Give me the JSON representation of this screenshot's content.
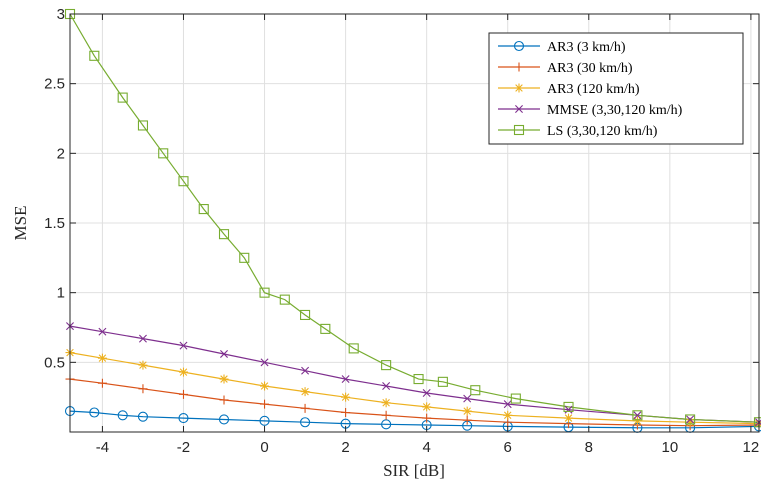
{
  "chart_data": {
    "type": "line",
    "xlabel": "SIR [dB]",
    "ylabel": "MSE",
    "xlim": [
      -4.8,
      12.2
    ],
    "ylim": [
      0,
      3
    ],
    "grid": true,
    "legend_position": "top-right",
    "x_ticks": [
      -4,
      -2,
      0,
      2,
      4,
      6,
      8,
      10,
      12
    ],
    "y_ticks": [
      0.5,
      1,
      1.5,
      2,
      2.5,
      3
    ],
    "x_tick_labels": [
      "-4",
      "-2",
      "0",
      "2",
      "4",
      "6",
      "8",
      "10",
      "12"
    ],
    "y_tick_labels": [
      "0.5",
      "1",
      "1.5",
      "2",
      "2.5",
      "3"
    ],
    "series": [
      {
        "name": "AR3 (3 km/h)",
        "color": "#0072BD",
        "marker": "circle",
        "points": [
          [
            -4.8,
            0.15
          ],
          [
            -4.2,
            0.14
          ],
          [
            -3.5,
            0.12
          ],
          [
            -3.0,
            0.11
          ],
          [
            -2.0,
            0.1
          ],
          [
            -1.0,
            0.09
          ],
          [
            0.0,
            0.08
          ],
          [
            1.0,
            0.07
          ],
          [
            2.0,
            0.06
          ],
          [
            3.0,
            0.055
          ],
          [
            4.0,
            0.05
          ],
          [
            5.0,
            0.045
          ],
          [
            6.0,
            0.04
          ],
          [
            7.5,
            0.035
          ],
          [
            9.2,
            0.03
          ],
          [
            10.5,
            0.03
          ],
          [
            12.2,
            0.04
          ]
        ]
      },
      {
        "name": "AR3 (30 km/h)",
        "color": "#D95319",
        "marker": "plus",
        "points": [
          [
            -4.8,
            0.38
          ],
          [
            -4.0,
            0.35
          ],
          [
            -3.0,
            0.31
          ],
          [
            -2.0,
            0.27
          ],
          [
            -1.0,
            0.23
          ],
          [
            0.0,
            0.2
          ],
          [
            1.0,
            0.17
          ],
          [
            2.0,
            0.14
          ],
          [
            3.0,
            0.12
          ],
          [
            4.0,
            0.1
          ],
          [
            5.0,
            0.085
          ],
          [
            6.0,
            0.07
          ],
          [
            7.5,
            0.06
          ],
          [
            9.2,
            0.05
          ],
          [
            10.5,
            0.045
          ],
          [
            12.2,
            0.05
          ]
        ]
      },
      {
        "name": "AR3 (120 km/h)",
        "color": "#EDB120",
        "marker": "asterisk",
        "points": [
          [
            -4.8,
            0.57
          ],
          [
            -4.0,
            0.53
          ],
          [
            -3.0,
            0.48
          ],
          [
            -2.0,
            0.43
          ],
          [
            -1.0,
            0.38
          ],
          [
            0.0,
            0.33
          ],
          [
            1.0,
            0.29
          ],
          [
            2.0,
            0.25
          ],
          [
            3.0,
            0.21
          ],
          [
            4.0,
            0.18
          ],
          [
            5.0,
            0.15
          ],
          [
            6.0,
            0.12
          ],
          [
            7.5,
            0.1
          ],
          [
            9.2,
            0.08
          ],
          [
            10.5,
            0.07
          ],
          [
            12.2,
            0.06
          ]
        ]
      },
      {
        "name": "MMSE (3,30,120 km/h)",
        "color": "#7E2F8E",
        "marker": "x",
        "points": [
          [
            -4.8,
            0.76
          ],
          [
            -4.0,
            0.72
          ],
          [
            -3.0,
            0.67
          ],
          [
            -2.0,
            0.62
          ],
          [
            -1.0,
            0.56
          ],
          [
            0.0,
            0.5
          ],
          [
            1.0,
            0.44
          ],
          [
            2.0,
            0.38
          ],
          [
            3.0,
            0.33
          ],
          [
            4.0,
            0.28
          ],
          [
            5.0,
            0.24
          ],
          [
            6.0,
            0.2
          ],
          [
            7.5,
            0.16
          ],
          [
            9.2,
            0.12
          ],
          [
            10.5,
            0.09
          ],
          [
            12.2,
            0.07
          ]
        ]
      },
      {
        "name": "LS (3,30,120 km/h)",
        "color": "#77AC30",
        "marker": "square",
        "points": [
          [
            -4.8,
            3.0
          ],
          [
            -4.2,
            2.7
          ],
          [
            -3.5,
            2.4
          ],
          [
            -3.0,
            2.2
          ],
          [
            -2.5,
            2.0
          ],
          [
            -2.0,
            1.8
          ],
          [
            -1.5,
            1.6
          ],
          [
            -1.0,
            1.42
          ],
          [
            -0.5,
            1.25
          ],
          [
            0.0,
            1.0
          ],
          [
            0.5,
            0.95
          ],
          [
            1.0,
            0.84
          ],
          [
            1.5,
            0.74
          ],
          [
            2.2,
            0.6
          ],
          [
            3.0,
            0.48
          ],
          [
            3.8,
            0.38
          ],
          [
            4.4,
            0.36
          ],
          [
            5.2,
            0.3
          ],
          [
            6.2,
            0.24
          ],
          [
            7.5,
            0.18
          ],
          [
            9.2,
            0.12
          ],
          [
            10.5,
            0.09
          ],
          [
            12.2,
            0.07
          ]
        ]
      }
    ]
  }
}
